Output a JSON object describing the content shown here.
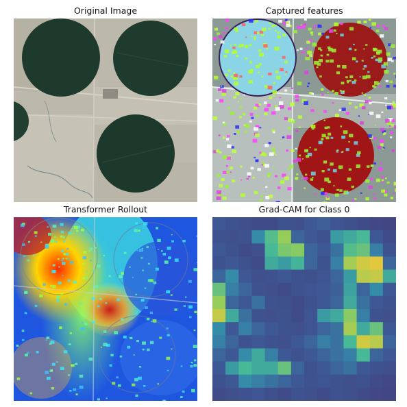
{
  "panels": [
    {
      "title": "Original Image"
    },
    {
      "title": "Captured features"
    },
    {
      "title": "Transformer Rollout"
    },
    {
      "title": "Grad-CAM for Class 0"
    }
  ],
  "gradcam": {
    "grid_size": 14,
    "activations": [
      [
        0.25,
        0.2,
        0.18,
        0.15,
        0.15,
        0.2,
        0.18,
        0.25,
        0.28,
        0.22,
        0.18,
        0.15,
        0.12,
        0.1
      ],
      [
        0.2,
        0.18,
        0.2,
        0.45,
        0.62,
        0.72,
        0.3,
        0.25,
        0.2,
        0.5,
        0.55,
        0.6,
        0.25,
        0.15
      ],
      [
        0.25,
        0.2,
        0.15,
        0.18,
        0.6,
        0.68,
        0.7,
        0.3,
        0.25,
        0.35,
        0.62,
        0.65,
        0.4,
        0.2
      ],
      [
        0.2,
        0.25,
        0.2,
        0.15,
        0.55,
        0.5,
        0.58,
        0.3,
        0.2,
        0.4,
        0.75,
        0.82,
        0.85,
        0.3
      ],
      [
        0.3,
        0.45,
        0.25,
        0.18,
        0.2,
        0.25,
        0.2,
        0.18,
        0.22,
        0.3,
        0.5,
        0.78,
        0.8,
        0.55
      ],
      [
        0.65,
        0.4,
        0.3,
        0.2,
        0.18,
        0.15,
        0.2,
        0.22,
        0.25,
        0.28,
        0.52,
        0.3,
        0.45,
        0.25
      ],
      [
        0.72,
        0.3,
        0.25,
        0.35,
        0.2,
        0.18,
        0.15,
        0.2,
        0.25,
        0.3,
        0.55,
        0.35,
        0.25,
        0.2
      ],
      [
        0.8,
        0.55,
        0.35,
        0.2,
        0.18,
        0.2,
        0.15,
        0.22,
        0.5,
        0.55,
        0.7,
        0.4,
        0.2,
        0.18
      ],
      [
        0.45,
        0.25,
        0.4,
        0.3,
        0.25,
        0.2,
        0.18,
        0.22,
        0.3,
        0.35,
        0.75,
        0.55,
        0.65,
        0.25
      ],
      [
        0.4,
        0.3,
        0.2,
        0.25,
        0.2,
        0.18,
        0.25,
        0.3,
        0.4,
        0.35,
        0.6,
        0.82,
        0.78,
        0.3
      ],
      [
        0.3,
        0.25,
        0.45,
        0.55,
        0.4,
        0.25,
        0.2,
        0.25,
        0.3,
        0.35,
        0.4,
        0.6,
        0.3,
        0.25
      ],
      [
        0.25,
        0.5,
        0.6,
        0.55,
        0.55,
        0.65,
        0.3,
        0.2,
        0.25,
        0.3,
        0.35,
        0.25,
        0.2,
        0.18
      ],
      [
        0.2,
        0.25,
        0.45,
        0.4,
        0.35,
        0.3,
        0.25,
        0.2,
        0.22,
        0.2,
        0.18,
        0.2,
        0.15,
        0.12
      ],
      [
        0.15,
        0.18,
        0.2,
        0.22,
        0.18,
        0.15,
        0.2,
        0.18,
        0.15,
        0.2,
        0.18,
        0.15,
        0.12,
        0.1
      ]
    ]
  },
  "colors": {
    "field_dark": "#1d3a2c",
    "field_red": "#a01515",
    "field_cyan": "#7fd6e8",
    "ground": "#bdb9ad"
  }
}
